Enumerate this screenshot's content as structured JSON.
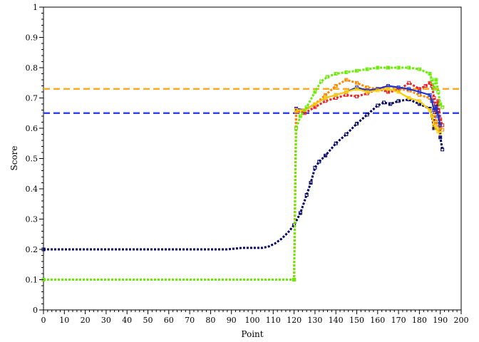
{
  "chart_data": {
    "type": "line",
    "xlabel": "Point",
    "ylabel": "Score",
    "xlim": [
      0,
      200
    ],
    "ylim": [
      0,
      1
    ],
    "x_major_ticks": [
      0,
      10,
      20,
      30,
      40,
      50,
      60,
      70,
      80,
      90,
      100,
      110,
      120,
      130,
      140,
      150,
      160,
      170,
      180,
      190,
      200
    ],
    "y_major_ticks": [
      0,
      0.1,
      0.2,
      0.3,
      0.4,
      0.5,
      0.6,
      0.7,
      0.8,
      0.9,
      1
    ],
    "x_tick_labels": [
      "0",
      "10",
      "20",
      "30",
      "40",
      "50",
      "60",
      "70",
      "80",
      "90",
      "100",
      "110",
      "120",
      "130",
      "140",
      "150",
      "160",
      "170",
      "180",
      "190",
      "200"
    ],
    "y_tick_labels": [
      "0",
      "0.1",
      "0.2",
      "0.3",
      "0.4",
      "0.5",
      "0.6",
      "0.7",
      "0.8",
      "0.9",
      "1"
    ],
    "grid": false,
    "reference_lines": [
      {
        "y": 0.73,
        "color": "#ffaa22",
        "style": "dashed"
      },
      {
        "y": 0.65,
        "color": "#3344ee",
        "style": "dashed"
      }
    ],
    "series": [
      {
        "color": "#000066",
        "style": "dotted",
        "marker": "square",
        "x": [
          0,
          20,
          40,
          60,
          80,
          88,
          95,
          100,
          105,
          108,
          111,
          114,
          117,
          120,
          123,
          126,
          128,
          130,
          132,
          135,
          140,
          145,
          150,
          155,
          160,
          163,
          166,
          170,
          175,
          180,
          185,
          186,
          187,
          188,
          189,
          190,
          191
        ],
        "y": [
          0.2,
          0.2,
          0.2,
          0.2,
          0.2,
          0.2,
          0.205,
          0.205,
          0.205,
          0.21,
          0.22,
          0.235,
          0.255,
          0.28,
          0.32,
          0.38,
          0.42,
          0.47,
          0.49,
          0.51,
          0.55,
          0.58,
          0.615,
          0.645,
          0.675,
          0.685,
          0.68,
          0.69,
          0.695,
          0.68,
          0.665,
          0.64,
          0.6,
          0.68,
          0.66,
          0.57,
          0.53
        ]
      },
      {
        "color": "#ee2222",
        "style": "dotted",
        "marker": "square",
        "x": [
          0,
          20,
          40,
          60,
          80,
          100,
          115,
          120,
          121,
          122,
          125,
          130,
          135,
          140,
          145,
          150,
          155,
          160,
          165,
          170,
          175,
          180,
          183,
          185,
          186,
          187,
          188,
          189,
          190,
          191
        ],
        "y": [
          0.1,
          0.1,
          0.1,
          0.1,
          0.1,
          0.1,
          0.1,
          0.1,
          0.665,
          0.66,
          0.65,
          0.67,
          0.69,
          0.7,
          0.71,
          0.705,
          0.715,
          0.73,
          0.72,
          0.725,
          0.75,
          0.73,
          0.74,
          0.75,
          0.74,
          0.7,
          0.66,
          0.69,
          0.63,
          0.61
        ]
      },
      {
        "color": "#ff8800",
        "style": "dotted",
        "marker": "square",
        "x": [
          0,
          20,
          40,
          60,
          80,
          100,
          115,
          120,
          121,
          122,
          125,
          130,
          135,
          140,
          145,
          150,
          155,
          160,
          165,
          170,
          175,
          180,
          185,
          186,
          187,
          188,
          189,
          190,
          191
        ],
        "y": [
          0.1,
          0.1,
          0.1,
          0.1,
          0.1,
          0.1,
          0.1,
          0.1,
          0.655,
          0.655,
          0.66,
          0.68,
          0.71,
          0.74,
          0.76,
          0.75,
          0.735,
          0.73,
          0.74,
          0.73,
          0.725,
          0.71,
          0.7,
          0.69,
          0.66,
          0.62,
          0.61,
          0.6,
          0.595
        ]
      },
      {
        "color": "#2233cc",
        "style": "solid",
        "marker": "square",
        "x": [
          121,
          125,
          130,
          135,
          140,
          145,
          150,
          155,
          160,
          165,
          170,
          175,
          180,
          185,
          186,
          187,
          188,
          189,
          190
        ],
        "y": [
          0.665,
          0.66,
          0.68,
          0.7,
          0.71,
          0.72,
          0.735,
          0.725,
          0.73,
          0.74,
          0.735,
          0.73,
          0.72,
          0.71,
          0.69,
          0.66,
          0.67,
          0.64,
          0.61
        ]
      },
      {
        "color": "#ffcc00",
        "style": "solid",
        "marker": "square",
        "x": [
          121,
          125,
          130,
          135,
          140,
          145,
          150,
          155,
          160,
          165,
          170,
          175,
          180,
          185,
          186,
          187,
          188,
          189,
          190
        ],
        "y": [
          0.66,
          0.66,
          0.68,
          0.7,
          0.71,
          0.72,
          0.73,
          0.72,
          0.725,
          0.73,
          0.72,
          0.7,
          0.69,
          0.66,
          0.64,
          0.61,
          0.6,
          0.59,
          0.585
        ]
      },
      {
        "color": "#66ee00",
        "style": "dotted",
        "marker": "square",
        "x": [
          0,
          20,
          40,
          60,
          80,
          100,
          115,
          120,
          121,
          123,
          126,
          130,
          133,
          136,
          140,
          145,
          150,
          155,
          160,
          165,
          170,
          175,
          180,
          185,
          186,
          187,
          188,
          189,
          190,
          191
        ],
        "y": [
          0.1,
          0.1,
          0.1,
          0.1,
          0.1,
          0.1,
          0.1,
          0.1,
          0.6,
          0.64,
          0.67,
          0.72,
          0.755,
          0.77,
          0.78,
          0.785,
          0.79,
          0.795,
          0.8,
          0.8,
          0.8,
          0.8,
          0.795,
          0.78,
          0.76,
          0.73,
          0.76,
          0.72,
          0.68,
          0.67
        ]
      }
    ]
  }
}
